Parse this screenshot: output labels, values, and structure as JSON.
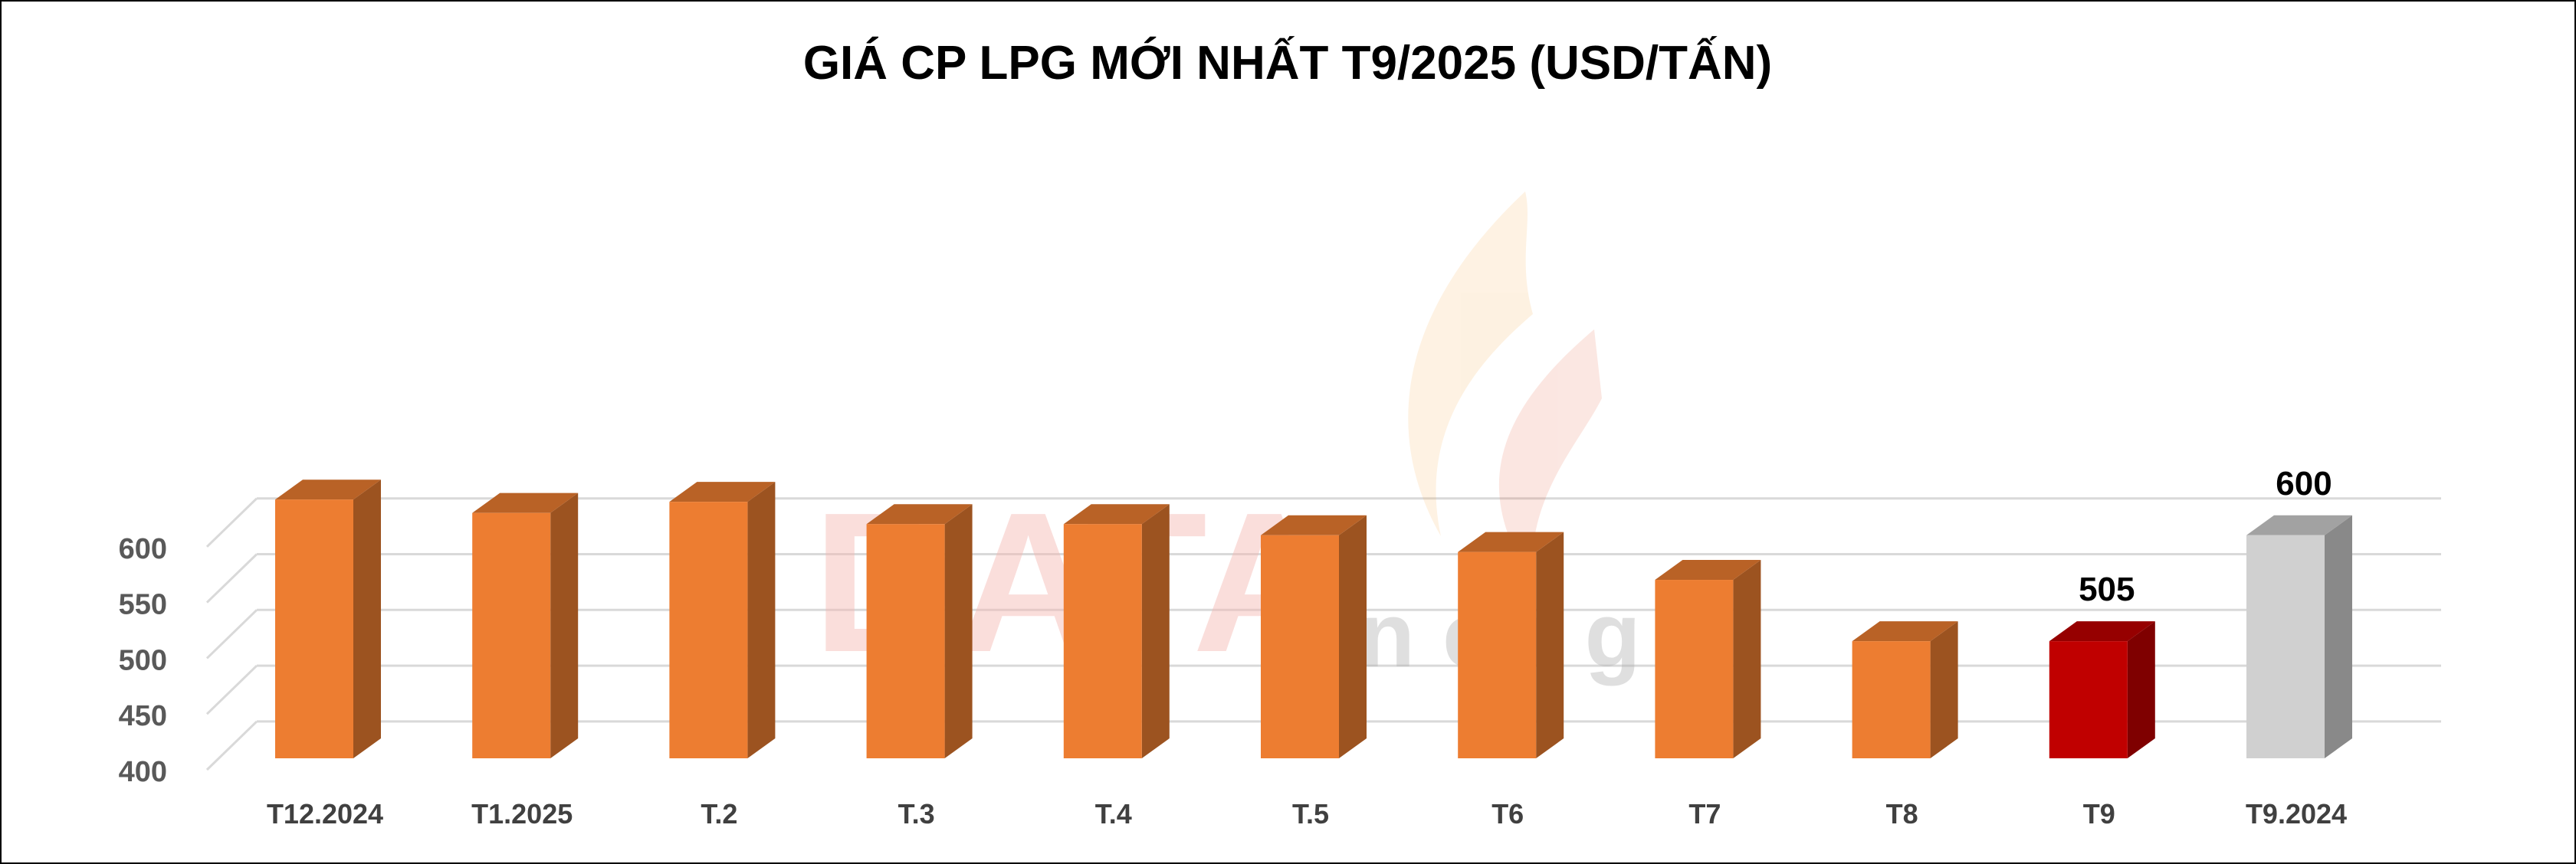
{
  "chart_data": {
    "type": "bar",
    "title": "GIÁ CP LPG MỚI NHẤT T9/2025 (USD/TẤN)",
    "categories": [
      "T12.2024",
      "T1.2025",
      "T.2",
      "T.3",
      "T.4",
      "T.5",
      "T6",
      "T7",
      "T8",
      "T9",
      "T9.2024"
    ],
    "values": [
      632,
      620,
      630,
      610,
      610,
      600,
      585,
      560,
      505,
      505,
      600
    ],
    "data_labels": [
      "",
      "",
      "",
      "",
      "",
      "",
      "",
      "",
      "",
      "505",
      "600"
    ],
    "ylim": [
      400,
      650
    ],
    "yticks": [
      "400",
      "450",
      "500",
      "550",
      "600"
    ],
    "grid": true,
    "colors": {
      "default": "#ED7D31",
      "highlight": "#C00000",
      "comparison": "#D0D0D0"
    },
    "bar_colors": [
      "default",
      "default",
      "default",
      "default",
      "default",
      "default",
      "default",
      "default",
      "default",
      "highlight",
      "comparison"
    ]
  },
  "watermark": {
    "primary": "DATA",
    "secondary": "energy"
  }
}
